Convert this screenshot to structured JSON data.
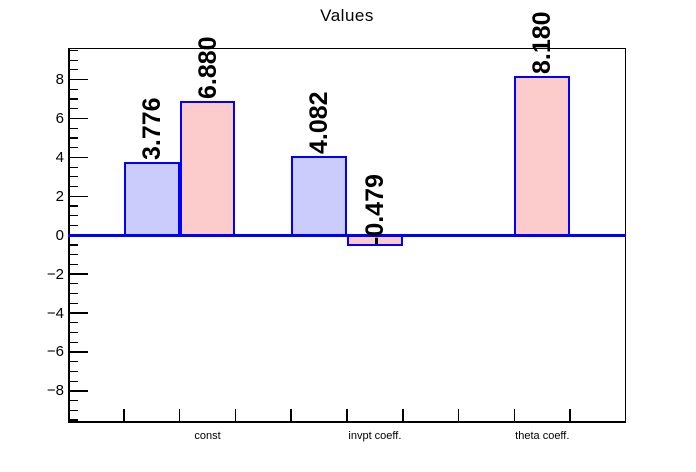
{
  "header": {
    "title": "Values"
  },
  "chart_data": {
    "type": "bar",
    "title": "Values",
    "xlabel": "",
    "ylabel": "",
    "ylim": [
      -9.65,
      9.65
    ],
    "yticks": [
      -8,
      -6,
      -4,
      -2,
      0,
      2,
      4,
      6,
      8
    ],
    "ytick_minor_step": 0.5,
    "grid": false,
    "legend": "none",
    "n_bins": 10,
    "bin_labels": [
      {
        "bin": 2,
        "label": "const"
      },
      {
        "bin": 5,
        "label": "invpt coeff."
      },
      {
        "bin": 8,
        "label": "theta coeff."
      }
    ],
    "bars": [
      {
        "bin": 1,
        "series": "series1",
        "value": 3.776,
        "label": "3.776"
      },
      {
        "bin": 2,
        "series": "series2",
        "value": 6.88,
        "label": "6.880"
      },
      {
        "bin": 4,
        "series": "series1",
        "value": 4.082,
        "label": "4.082"
      },
      {
        "bin": 5,
        "series": "series2",
        "value": -0.479,
        "label": "-0.479"
      },
      {
        "bin": 8,
        "series": "series2",
        "value": 8.18,
        "label": "8.180"
      }
    ],
    "series_colors": {
      "series1": "#ccccfc",
      "series2": "#fccccc"
    },
    "bar_border_color": "#0000ff",
    "zero_line_color": "#0000ff",
    "axis_color": "#000000",
    "text_color": "#000000",
    "background": "#ffffff"
  }
}
